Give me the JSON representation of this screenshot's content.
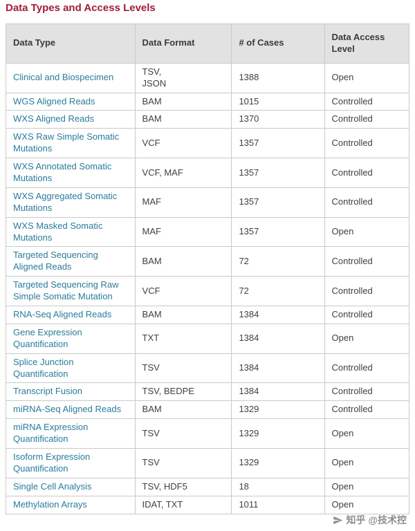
{
  "page": {
    "title": "Data Types and Access Levels"
  },
  "table": {
    "headers": [
      "Data Type",
      "Data Format",
      "# of Cases",
      "Data Access Level"
    ],
    "rows": [
      {
        "type": "Clinical and Biospecimen",
        "format": "TSV,\nJSON",
        "cases": "1388",
        "access": "Open"
      },
      {
        "type": "WGS Aligned Reads",
        "format": "BAM",
        "cases": "1015",
        "access": "Controlled"
      },
      {
        "type": "WXS Aligned Reads",
        "format": "BAM",
        "cases": "1370",
        "access": "Controlled"
      },
      {
        "type": "WXS Raw Simple Somatic Mutations",
        "format": "VCF",
        "cases": "1357",
        "access": "Controlled"
      },
      {
        "type": "WXS Annotated Somatic Mutations",
        "format": "VCF, MAF",
        "cases": "1357",
        "access": "Controlled"
      },
      {
        "type": "WXS Aggregated Somatic Mutations",
        "format": "MAF",
        "cases": "1357",
        "access": "Controlled"
      },
      {
        "type": "WXS Masked Somatic Mutations",
        "format": "MAF",
        "cases": "1357",
        "access": "Open"
      },
      {
        "type": "Targeted Sequencing Aligned Reads",
        "format": "BAM",
        "cases": "72",
        "access": "Controlled"
      },
      {
        "type": "Targeted Sequencing Raw Simple Somatic Mutation",
        "format": "VCF",
        "cases": "72",
        "access": "Controlled"
      },
      {
        "type": "RNA-Seq Aligned Reads",
        "format": "BAM",
        "cases": "1384",
        "access": "Controlled"
      },
      {
        "type": "Gene Expression Quantification",
        "format": "TXT",
        "cases": "1384",
        "access": "Open"
      },
      {
        "type": "Splice Junction Quantification",
        "format": "TSV",
        "cases": "1384",
        "access": "Controlled"
      },
      {
        "type": "Transcript Fusion",
        "format": "TSV, BEDPE",
        "cases": "1384",
        "access": "Controlled"
      },
      {
        "type": "miRNA-Seq Aligned Reads",
        "format": "BAM",
        "cases": "1329",
        "access": "Controlled"
      },
      {
        "type": "miRNA Expression Quantification",
        "format": "TSV",
        "cases": "1329",
        "access": "Open"
      },
      {
        "type": "Isoform Expression Quantification",
        "format": "TSV",
        "cases": "1329",
        "access": "Open"
      },
      {
        "type": "Single Cell Analysis",
        "format": "TSV, HDF5",
        "cases": "18",
        "access": "Open"
      },
      {
        "type": "Methylation Arrays",
        "format": "IDAT, TXT",
        "cases": "1011",
        "access": "Open"
      }
    ]
  },
  "watermark": {
    "text": "知乎 @技术控"
  }
}
